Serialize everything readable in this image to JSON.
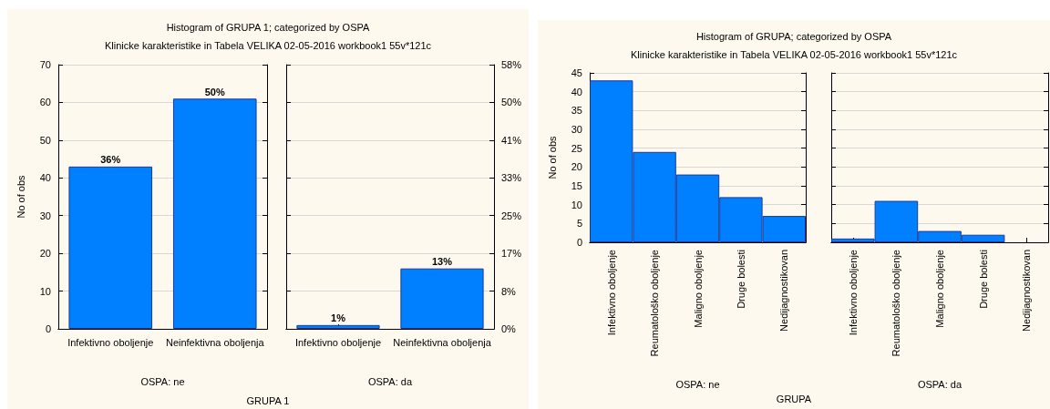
{
  "chart_data": [
    {
      "type": "bar",
      "title": "Histogram of GRUPA 1; categorized by OSPA",
      "subtitle": "Klinicke karakteristike in Tabela VELIKA 02-05-2016 workbook1 55v*121c",
      "xlabel": "OSPA: ne",
      "ylabel": "No of obs",
      "annotations": [
        "GRUPA 1",
        {
          "text": "36%",
          "x": "Infektivno oboljenje",
          "y": 43
        },
        {
          "text": "50%",
          "x": "Neinfektivna oboljenja",
          "y": 61
        }
      ],
      "categories": [
        "Infektivno oboljenje",
        "Neinfektivna oboljenja"
      ],
      "values": [
        43,
        61
      ],
      "color": "#0080ff",
      "ylim": [
        0,
        70
      ],
      "yticks": [
        0,
        10,
        20,
        30,
        40,
        50,
        60,
        70
      ],
      "grid": "y"
    },
    {
      "type": "bar",
      "xlabel": "OSPA: da",
      "annotations": [
        {
          "text": "1%",
          "x": "Infektivno oboljenje",
          "y": 1
        },
        {
          "text": "13%",
          "x": "Neinfektivna oboljenja",
          "y": 16
        }
      ],
      "categories": [
        "Infektivno oboljenje",
        "Neinfektivna oboljenja"
      ],
      "values": [
        1,
        16
      ],
      "color": "#0080ff",
      "ylim": [
        0,
        70
      ],
      "yticks": [
        0,
        10,
        20,
        30,
        40,
        50,
        60,
        70
      ],
      "y2lim": [
        0,
        57.85
      ],
      "y2ticks": [
        {
          "value": 0,
          "label": "0%"
        },
        {
          "value": 8.26,
          "label": "8%"
        },
        {
          "value": 16.53,
          "label": "17%"
        },
        {
          "value": 24.79,
          "label": "25%"
        },
        {
          "value": 33.06,
          "label": "33%"
        },
        {
          "value": 41.32,
          "label": "41%"
        },
        {
          "value": 49.59,
          "label": "50%"
        },
        {
          "value": 57.85,
          "label": "58%"
        }
      ],
      "grid": "y",
      "tick_labels": "x"
    },
    {
      "type": "bar",
      "title": "Histogram of GRUPA; categorized by OSPA",
      "subtitle": "Klinicke karakteristike in Tabela VELIKA 02-05-2016 workbook1 55v*121c",
      "xlabel": "OSPA: ne",
      "ylabel": "No of obs",
      "annotations": [
        "GRUPA"
      ],
      "categories": [
        "Infektivno oboljenje",
        "Reumatološko oboljenje",
        "Maligno oboljenje",
        "Druge bolesti",
        "Nedijagnostikovan"
      ],
      "values": [
        43,
        24,
        18,
        12,
        7
      ],
      "color": "#0080ff",
      "ylim": [
        0,
        45
      ],
      "yticks": [
        0,
        5,
        10,
        15,
        20,
        25,
        30,
        35,
        40,
        45
      ],
      "grid": "y"
    },
    {
      "type": "bar",
      "xlabel": "OSPA: da",
      "categories": [
        "Infektivno oboljenje",
        "Reumatološko oboljenje",
        "Maligno oboljenje",
        "Druge bolesti",
        "Nedijagnostikovan"
      ],
      "values": [
        1,
        11,
        3,
        2,
        0
      ],
      "color": "#0080ff",
      "ylim": [
        0,
        45
      ],
      "yticks": [
        0,
        5,
        10,
        15,
        20,
        25,
        30,
        35,
        40,
        45
      ],
      "grid": "y",
      "tick_labels": "x"
    }
  ]
}
